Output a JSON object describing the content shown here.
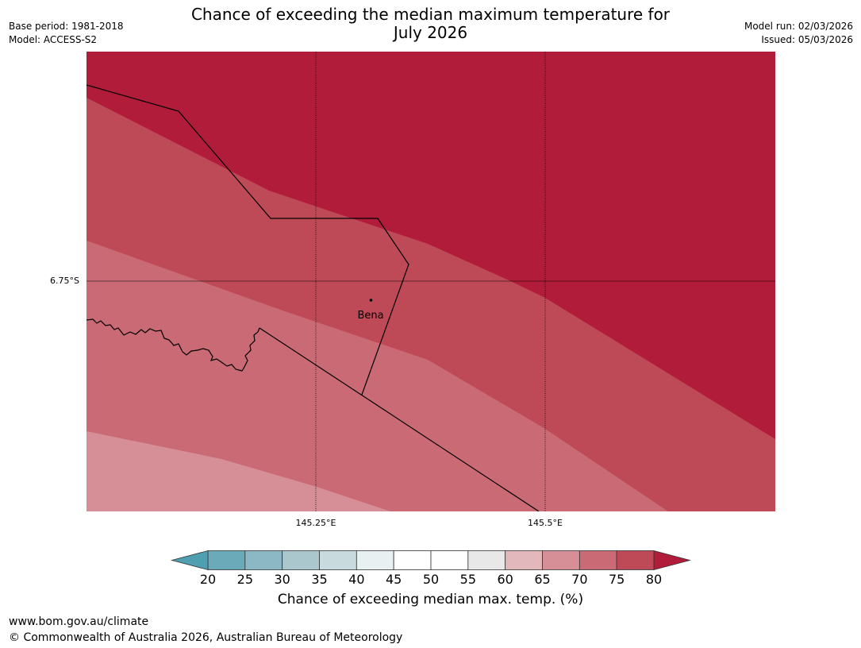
{
  "header": {
    "title_line1": "Chance of exceeding the median maximum temperature for",
    "title_line2": "July 2026",
    "base_period": "Base period: 1981-2018",
    "model": "Model: ACCESS-S2",
    "model_run": "Model run: 02/03/2026",
    "issued": "Issued: 05/03/2026"
  },
  "map": {
    "lat_labels": [
      "6.75°S"
    ],
    "lon_labels": [
      "145.25°E",
      "145.5°E"
    ],
    "places": [
      {
        "name": "Bena"
      }
    ]
  },
  "colorbar": {
    "title": "Chance of exceeding median max. temp. (%)",
    "ticks": [
      "20",
      "25",
      "30",
      "35",
      "40",
      "45",
      "50",
      "55",
      "60",
      "65",
      "70",
      "75",
      "80"
    ],
    "colors": [
      "#6aaab9",
      "#8cb7c4",
      "#aac7cd",
      "#c8dadd",
      "#e8f0f2",
      "#ffffff",
      "#ffffff",
      "#e8e8e8",
      "#e3b8bd",
      "#d68f97",
      "#c96a74",
      "#bf4a57"
    ],
    "under_color": "#4f9fb1",
    "over_color": "#b01c39"
  },
  "footer": {
    "url": "www.bom.gov.au/climate",
    "copyright": "© Commonwealth of Australia 2026, Australian Bureau of Meteorology"
  }
}
